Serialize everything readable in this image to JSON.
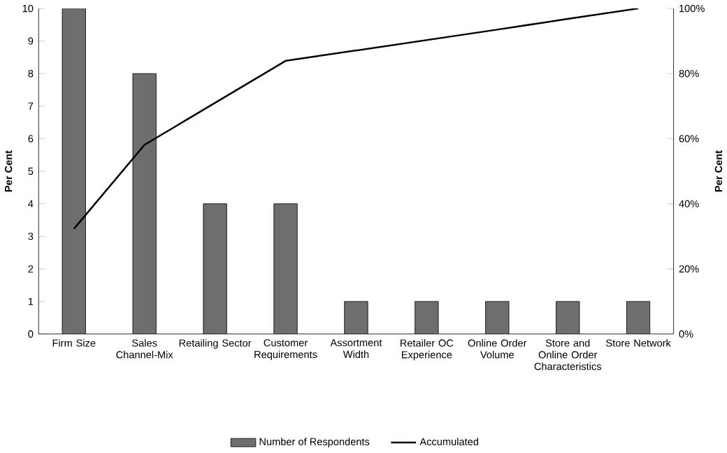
{
  "chart_data": {
    "type": "bar",
    "ylabel": "Per Cent",
    "y2label": "Per Cent",
    "categories": [
      "Firm Size",
      "Sales Channel-Mix",
      "Retailing Sector",
      "Customer Requirements",
      "Assortment Width",
      "Retailer OC Experience",
      "Online Order Volume",
      "Store and Online Order Characteristics",
      "Store Network"
    ],
    "series": [
      {
        "name": "Number of Respondents",
        "color": "#6e6e6e",
        "values": [
          10,
          8,
          4,
          4,
          1,
          1,
          1,
          1,
          1
        ]
      },
      {
        "name": "Accumulated",
        "type": "line",
        "axis": "y2",
        "color": "#000000",
        "values": [
          32.3,
          58.1,
          71.0,
          83.9,
          87.1,
          90.3,
          93.5,
          96.8,
          100
        ]
      }
    ],
    "ylim": [
      0,
      10
    ],
    "yticks": [
      0,
      1,
      2,
      3,
      4,
      5,
      6,
      7,
      8,
      9,
      10
    ],
    "y2lim": [
      0,
      100
    ],
    "y2ticks": [
      {
        "value": 0,
        "label": "0%"
      },
      {
        "value": 20,
        "label": "20%"
      },
      {
        "value": 40,
        "label": "40%"
      },
      {
        "value": 60,
        "label": "60%"
      },
      {
        "value": 80,
        "label": "80%"
      },
      {
        "value": 100,
        "label": "100%"
      }
    ],
    "legend": "bottom",
    "grid": false,
    "marker": "none",
    "line_style": "solid"
  }
}
